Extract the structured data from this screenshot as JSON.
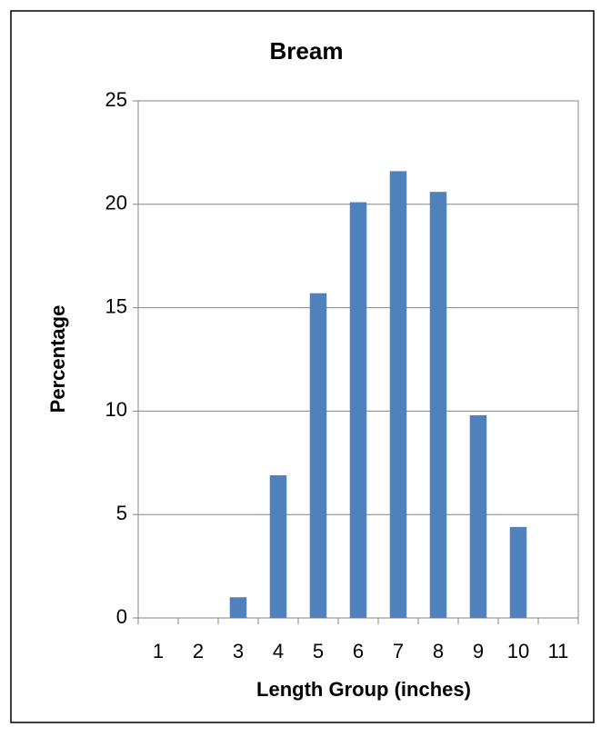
{
  "chart_data": {
    "type": "bar",
    "title": "Bream",
    "x_label": "Length Group (inches)",
    "y_label": "Percentage",
    "categories": [
      "1",
      "2",
      "3",
      "4",
      "5",
      "6",
      "7",
      "8",
      "9",
      "10",
      "11"
    ],
    "values": [
      0,
      0,
      1,
      6.9,
      15.7,
      20.1,
      21.6,
      20.6,
      9.8,
      4.4,
      0
    ],
    "color": "#4f81bd",
    "ylim": [
      0,
      25
    ],
    "yticks": [
      0,
      5,
      10,
      15,
      20,
      25
    ],
    "grid": true
  }
}
